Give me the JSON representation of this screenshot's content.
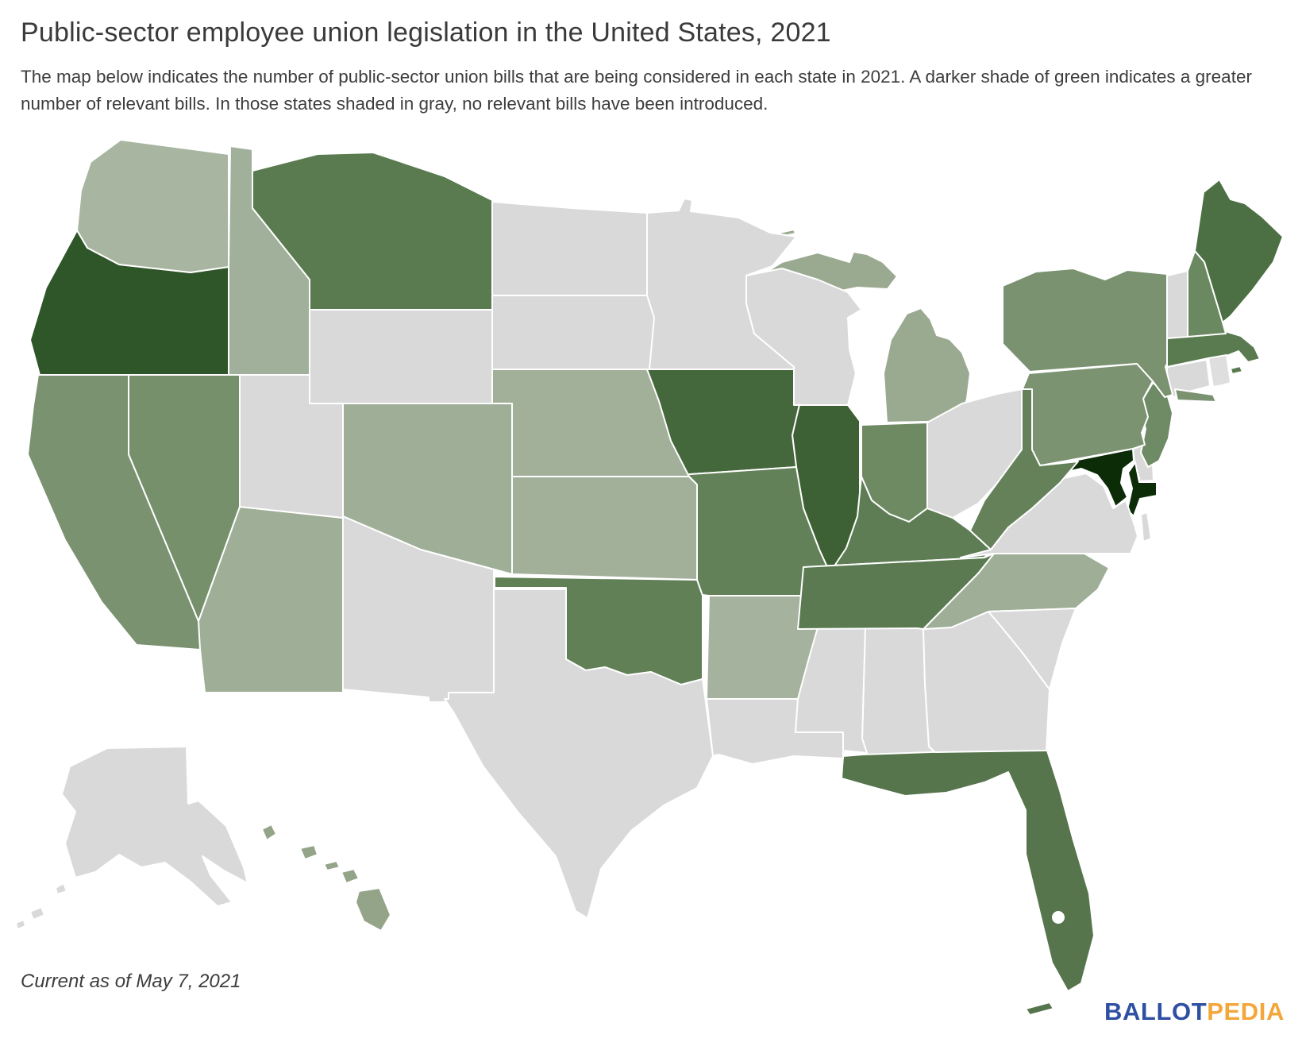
{
  "header": {
    "title": "Public-sector employee union legislation in the United States, 2021",
    "subtitle": "The map below indicates the number of public-sector union bills that are being considered in each state in 2021. A darker shade of green indicates a greater number of relevant bills. In those states shaded in gray, no relevant bills have been introduced."
  },
  "map": {
    "background_color": "#ffffff",
    "state_border_color": "#ffffff",
    "no_bills_color": "#d9d9d9",
    "shade_meaning": "darker green = greater number of relevant bills; gray = no relevant bills introduced",
    "states": [
      {
        "id": "AL",
        "name": "Alabama",
        "fill": "#d9d9d9"
      },
      {
        "id": "AK",
        "name": "Alaska",
        "fill": "#d9d9d9"
      },
      {
        "id": "AZ",
        "name": "Arizona",
        "fill": "#9fae97"
      },
      {
        "id": "AR",
        "name": "Arkansas",
        "fill": "#a5b29d"
      },
      {
        "id": "CA",
        "name": "California",
        "fill": "#7a9270"
      },
      {
        "id": "CO",
        "name": "Colorado",
        "fill": "#9fae97"
      },
      {
        "id": "CT",
        "name": "Connecticut",
        "fill": "#d9d9d9"
      },
      {
        "id": "DE",
        "name": "Delaware",
        "fill": "#d9d9d9"
      },
      {
        "id": "FL",
        "name": "Florida",
        "fill": "#56754c"
      },
      {
        "id": "GA",
        "name": "Georgia",
        "fill": "#d9d9d9"
      },
      {
        "id": "HI",
        "name": "Hawaii",
        "fill": "#93a489"
      },
      {
        "id": "ID",
        "name": "Idaho",
        "fill": "#a1b09a"
      },
      {
        "id": "IL",
        "name": "Illinois",
        "fill": "#3e6035"
      },
      {
        "id": "IN",
        "name": "Indiana",
        "fill": "#6e8a63"
      },
      {
        "id": "IA",
        "name": "Iowa",
        "fill": "#45673c"
      },
      {
        "id": "KS",
        "name": "Kansas",
        "fill": "#a2b099"
      },
      {
        "id": "KY",
        "name": "Kentucky",
        "fill": "#5e7d54"
      },
      {
        "id": "LA",
        "name": "Louisiana",
        "fill": "#d9d9d9"
      },
      {
        "id": "ME",
        "name": "Maine",
        "fill": "#4c7043"
      },
      {
        "id": "MD",
        "name": "Maryland",
        "fill": "#0b2c07"
      },
      {
        "id": "MA",
        "name": "Massachusetts",
        "fill": "#5a7a50"
      },
      {
        "id": "MI",
        "name": "Michigan",
        "fill": "#9aaa90"
      },
      {
        "id": "MN",
        "name": "Minnesota",
        "fill": "#d9d9d9"
      },
      {
        "id": "MS",
        "name": "Mississippi",
        "fill": "#d9d9d9"
      },
      {
        "id": "MO",
        "name": "Missouri",
        "fill": "#638159"
      },
      {
        "id": "MT",
        "name": "Montana",
        "fill": "#5a7a50"
      },
      {
        "id": "NE",
        "name": "Nebraska",
        "fill": "#a2b099"
      },
      {
        "id": "NV",
        "name": "Nevada",
        "fill": "#75906b"
      },
      {
        "id": "NH",
        "name": "New Hampshire",
        "fill": "#6b8961"
      },
      {
        "id": "NJ",
        "name": "New Jersey",
        "fill": "#6f8b65"
      },
      {
        "id": "NM",
        "name": "New Mexico",
        "fill": "#d9d9d9"
      },
      {
        "id": "NY",
        "name": "New York",
        "fill": "#7a9270"
      },
      {
        "id": "NC",
        "name": "North Carolina",
        "fill": "#9fae97"
      },
      {
        "id": "ND",
        "name": "North Dakota",
        "fill": "#d9d9d9"
      },
      {
        "id": "OH",
        "name": "Ohio",
        "fill": "#d9d9d9"
      },
      {
        "id": "OK",
        "name": "Oklahoma",
        "fill": "#618056"
      },
      {
        "id": "OR",
        "name": "Oregon",
        "fill": "#2f5628"
      },
      {
        "id": "PA",
        "name": "Pennsylvania",
        "fill": "#7b9370"
      },
      {
        "id": "RI",
        "name": "Rhode Island",
        "fill": "#dedede"
      },
      {
        "id": "SC",
        "name": "South Carolina",
        "fill": "#d9d9d9"
      },
      {
        "id": "SD",
        "name": "South Dakota",
        "fill": "#d9d9d9"
      },
      {
        "id": "TN",
        "name": "Tennessee",
        "fill": "#5b7a51"
      },
      {
        "id": "TX",
        "name": "Texas",
        "fill": "#d9d9d9"
      },
      {
        "id": "UT",
        "name": "Utah",
        "fill": "#d9d9d9"
      },
      {
        "id": "VT",
        "name": "Vermont",
        "fill": "#d9d9d9"
      },
      {
        "id": "VA",
        "name": "Virginia",
        "fill": "#d9d9d9"
      },
      {
        "id": "WA",
        "name": "Washington",
        "fill": "#a8b5a0"
      },
      {
        "id": "WV",
        "name": "West Virginia",
        "fill": "#64815a"
      },
      {
        "id": "WI",
        "name": "Wisconsin",
        "fill": "#d9d9d9"
      },
      {
        "id": "WY",
        "name": "Wyoming",
        "fill": "#d9d9d9"
      }
    ]
  },
  "footer": {
    "note": "Current as of May 7, 2021",
    "logo": {
      "primary": "BALLOT",
      "secondary": "PEDIA",
      "primary_color": "#2f4fa3",
      "secondary_color": "#f3a73b"
    }
  }
}
